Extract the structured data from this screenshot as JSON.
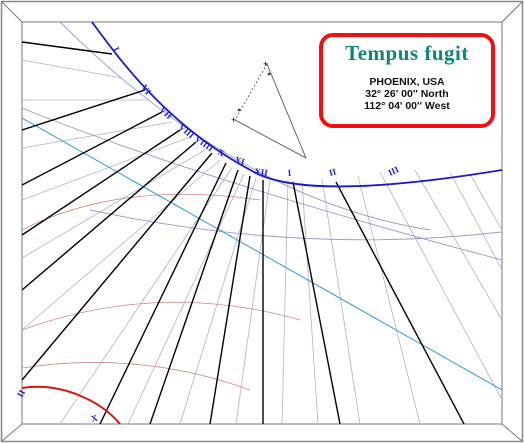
{
  "dial": {
    "motto": "Tempus fugit",
    "location": "PHOENIX, USA",
    "latitude": "32° 26' 00'' North",
    "longitude": "112° 04' 00'' West"
  },
  "hour_labels": [
    "I",
    "VI",
    "VII",
    "VIII",
    "VIIII",
    "X",
    "XI",
    "XII",
    "I",
    "II",
    "III",
    "II",
    "X"
  ],
  "colors": {
    "frame": "#888888",
    "hour_line": "#000000",
    "half_hour_line": "#b0b0c8",
    "date_curve_blue": "#1a1acc",
    "date_curve_red": "#dd1111",
    "equinox_line": "#3399dd",
    "solstice_curves": "#cc8888",
    "purple_curves": "#9999cc",
    "motto_text": "#118577",
    "title_border": "#ee1111"
  }
}
